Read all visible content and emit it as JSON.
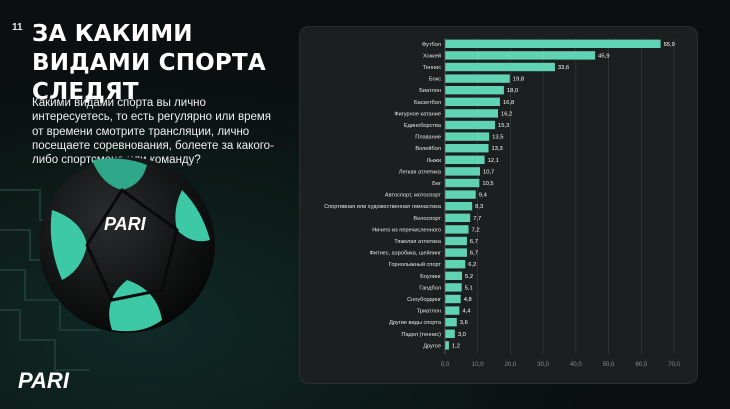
{
  "slide_number": "11",
  "title": "За какими видами спорта следят",
  "question": "Какими видами спорта вы лично интересуетесь, то есть регулярно или время от времени смотрите трансляции, лично посещаете соревнования, болеете за какого-либо спортсмена или команду?",
  "logo_text": "PARI",
  "colors": {
    "bar": "#5fd3b4",
    "accent": "#2ec4a0",
    "panel": "#1c1f1f"
  },
  "chart_data": {
    "type": "bar",
    "orientation": "horizontal",
    "categories": [
      "Футбол",
      "Хоккей",
      "Теннис",
      "Бокс",
      "Биатлон",
      "Баскетбол",
      "Фигурное катание",
      "Единоборства",
      "Плавание",
      "Волейбол",
      "Лыжи",
      "Легкая атлетика",
      "Бег",
      "Автоспорт, мотоспорт",
      "Спортивная или художественная гимнастика",
      "Велоспорт",
      "Ничего из перечисленного",
      "Тяжелая атлетика",
      "Фитнес, аэробика, шейпинг",
      "Горнолыжный спорт",
      "Боулинг",
      "Гандбол",
      "Сноубординг",
      "Триатлон",
      "Другие виды спорта",
      "Падел (теннис)",
      "Другое"
    ],
    "values": [
      65.9,
      45.9,
      33.6,
      19.8,
      18.0,
      16.8,
      16.2,
      15.3,
      13.5,
      13.3,
      12.1,
      10.7,
      10.5,
      9.4,
      8.3,
      7.7,
      7.2,
      6.7,
      6.7,
      6.2,
      5.2,
      5.1,
      4.8,
      4.4,
      3.6,
      3.0,
      1.2
    ],
    "value_labels": [
      "65,9",
      "45,9",
      "33,6",
      "19,8",
      "18,0",
      "16,8",
      "16,2",
      "15,3",
      "13,5",
      "13,3",
      "12,1",
      "10,7",
      "10,5",
      "9,4",
      "8,3",
      "7,7",
      "7,2",
      "6,7",
      "6,7",
      "6,2",
      "5,2",
      "5,1",
      "4,8",
      "4,4",
      "3,6",
      "3,0",
      "1,2"
    ],
    "xlim": [
      0,
      70
    ],
    "x_ticks": [
      0,
      10,
      20,
      30,
      40,
      50,
      60,
      70
    ],
    "x_tick_labels": [
      "0,0",
      "10,0",
      "20,0",
      "30,0",
      "40,0",
      "50,0",
      "60,0",
      "70,0"
    ],
    "grid": true
  }
}
